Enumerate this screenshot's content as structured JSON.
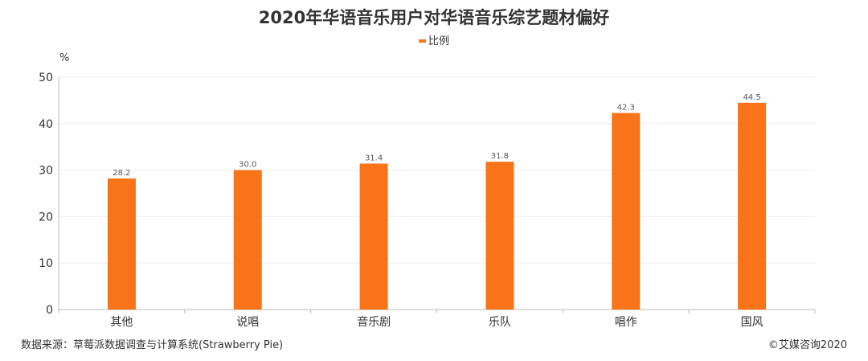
{
  "colors": {
    "bar": "#F97318",
    "grid": "#EEEEEE",
    "axis": "#BBBBBB",
    "text": "#333333"
  },
  "footer": {
    "source": "数据来源：草莓派数据调查与计算系统(Strawberry Pie)",
    "copyright": "©艾媒咨询2020"
  },
  "chart_data": {
    "type": "bar",
    "title": "2020年华语音乐用户对华语音乐综艺题材偏好",
    "ylabel": "%",
    "xlabel": "",
    "ylim": [
      0,
      50
    ],
    "yticks": [
      0,
      10,
      20,
      30,
      40,
      50
    ],
    "grid": true,
    "legend_position": "top-center",
    "categories": [
      "其他",
      "说唱",
      "音乐剧",
      "乐队",
      "唱作",
      "国风"
    ],
    "series": [
      {
        "name": "比例",
        "values": [
          28.2,
          30.0,
          31.4,
          31.8,
          42.3,
          44.5
        ],
        "labels": [
          "28.2",
          "30.0",
          "31.4",
          "31.8",
          "42.3",
          "44.5"
        ]
      }
    ]
  }
}
